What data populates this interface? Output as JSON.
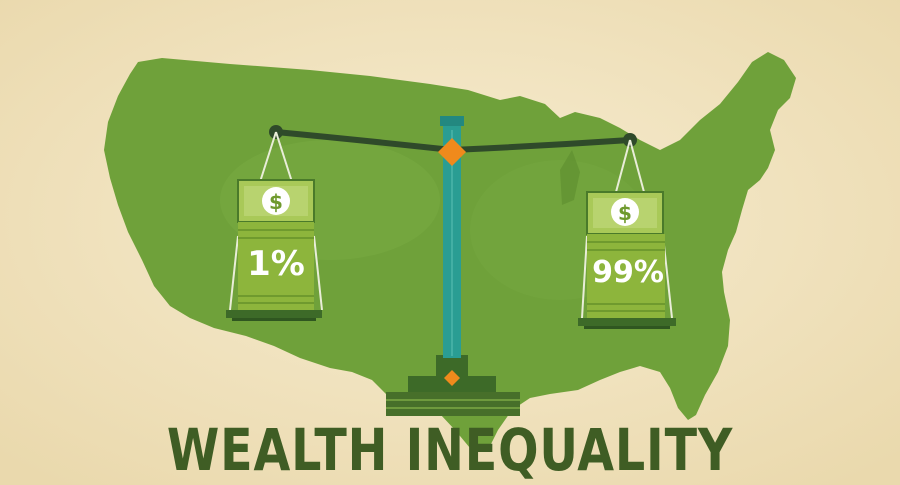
{
  "title": "WEALTH INEQUALITY",
  "left_pan": {
    "label": "1%",
    "icon": "dollar-icon"
  },
  "right_pan": {
    "label": "99%",
    "icon": "dollar-icon"
  },
  "colors": {
    "background": "#f3e6c2",
    "map_green": "#6fa13a",
    "money_green": "#8db53c",
    "scale_teal": "#2a9d93",
    "pivot_orange": "#f08a1c",
    "title_green": "#3f5d24"
  }
}
